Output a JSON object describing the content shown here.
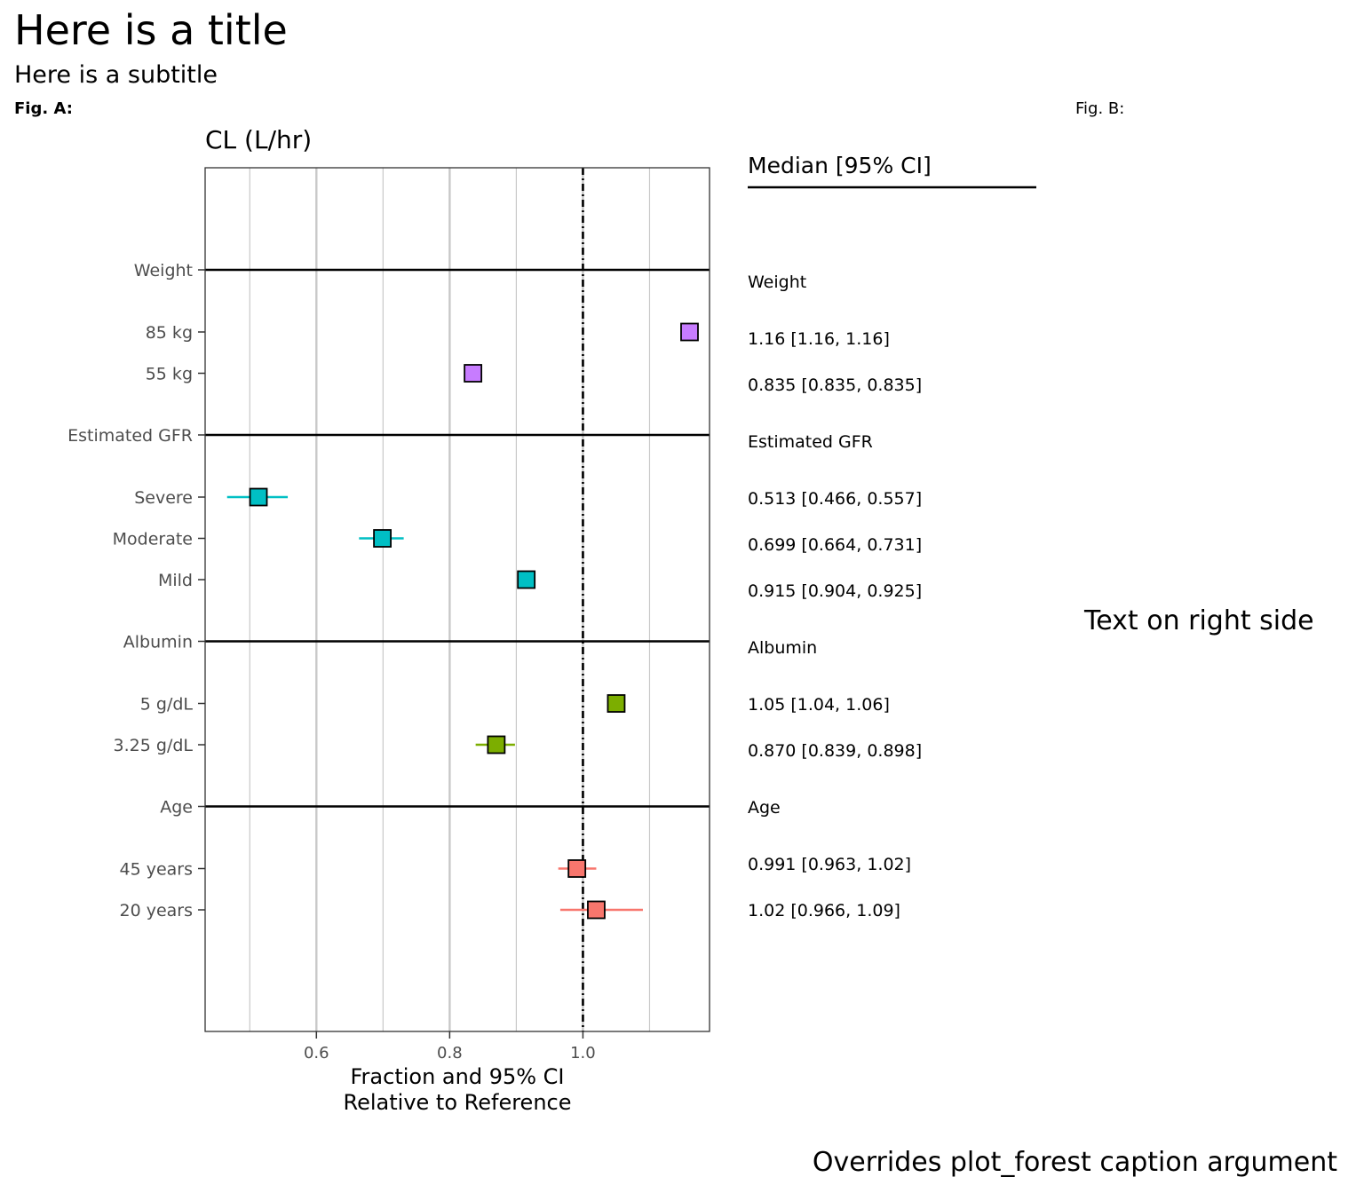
{
  "title": "Here is a title",
  "subtitle": "Here is a subtitle",
  "fig_a_tag": "Fig. A:",
  "fig_b_tag": "Fig. B:",
  "right_side_text": "Text on right side",
  "caption": "Overrides plot_forest caption argument",
  "colors": {
    "Weight": "#C77CFF",
    "Estimated GFR": "#00BFC4",
    "Albumin": "#7CAE00",
    "Age": "#F8766D",
    "grid": "#c8c8c8",
    "reference_line": "#000000"
  },
  "chart_data": {
    "type": "forest",
    "panel_title": "CL (L/hr)",
    "xlabel_line1": "Fraction and 95% CI",
    "xlabel_line2": "Relative to Reference",
    "xlim": [
      0.433,
      1.19
    ],
    "x_ticks": [
      0.6,
      0.8,
      1.0
    ],
    "x_tick_labels": [
      "0.6",
      "0.8",
      "1.0"
    ],
    "reference_value": 1.0,
    "grid": true,
    "table_header": "Median [95% CI]",
    "groups": [
      {
        "name": "Weight",
        "rows": [
          {
            "label": "85 kg",
            "median": 1.16,
            "lower": 1.16,
            "upper": 1.16,
            "text": "1.16 [1.16, 1.16]"
          },
          {
            "label": "55 kg",
            "median": 0.835,
            "lower": 0.835,
            "upper": 0.835,
            "text": "0.835 [0.835, 0.835]"
          }
        ]
      },
      {
        "name": "Estimated GFR",
        "rows": [
          {
            "label": "Severe",
            "median": 0.513,
            "lower": 0.466,
            "upper": 0.557,
            "text": "0.513 [0.466, 0.557]"
          },
          {
            "label": "Moderate",
            "median": 0.699,
            "lower": 0.664,
            "upper": 0.731,
            "text": "0.699 [0.664, 0.731]"
          },
          {
            "label": "Mild",
            "median": 0.915,
            "lower": 0.904,
            "upper": 0.925,
            "text": "0.915 [0.904, 0.925]"
          }
        ]
      },
      {
        "name": "Albumin",
        "rows": [
          {
            "label": "5 g/dL",
            "median": 1.05,
            "lower": 1.04,
            "upper": 1.06,
            "text": "1.05 [1.04, 1.06]"
          },
          {
            "label": "3.25 g/dL",
            "median": 0.87,
            "lower": 0.839,
            "upper": 0.898,
            "text": "0.870 [0.839, 0.898]"
          }
        ]
      },
      {
        "name": "Age",
        "rows": [
          {
            "label": "45 years",
            "median": 0.991,
            "lower": 0.963,
            "upper": 1.02,
            "text": "0.991 [0.963, 1.02]"
          },
          {
            "label": "20 years",
            "median": 1.02,
            "lower": 0.966,
            "upper": 1.09,
            "text": "1.02 [0.966, 1.09]"
          }
        ]
      }
    ]
  }
}
